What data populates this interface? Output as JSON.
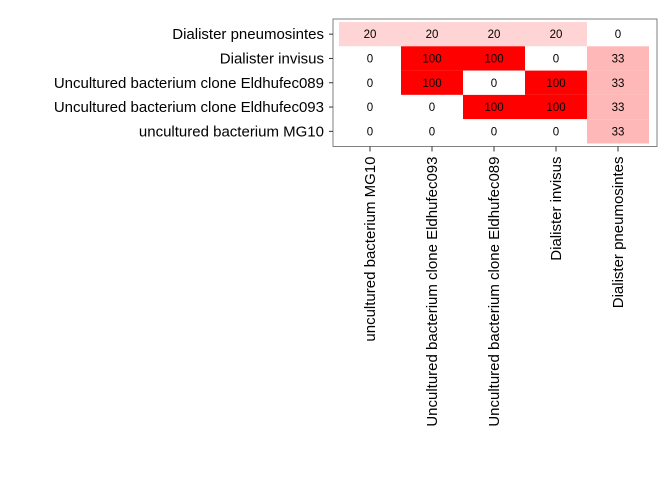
{
  "chart_data": {
    "type": "heatmap",
    "title": "",
    "xlabel": "",
    "ylabel": "",
    "rows": [
      "Dialister pneumosintes",
      "Dialister invisus",
      "Uncultured bacterium clone Eldhufec089",
      "Uncultured bacterium clone Eldhufec093",
      "uncultured bacterium MG10"
    ],
    "columns": [
      "uncultured bacterium MG10",
      "Uncultured bacterium clone Eldhufec093",
      "Uncultured bacterium clone Eldhufec089",
      "Dialister invisus",
      "Dialister pneumosintes"
    ],
    "values": [
      [
        20,
        20,
        20,
        20,
        0
      ],
      [
        0,
        100,
        100,
        0,
        33
      ],
      [
        0,
        100,
        0,
        100,
        33
      ],
      [
        0,
        0,
        100,
        100,
        33
      ],
      [
        0,
        0,
        0,
        0,
        33
      ]
    ],
    "color_scale": {
      "low": "#ffffff",
      "high": "#ff0000",
      "min": 0,
      "max": 100
    },
    "grid": false,
    "legend": "none"
  }
}
